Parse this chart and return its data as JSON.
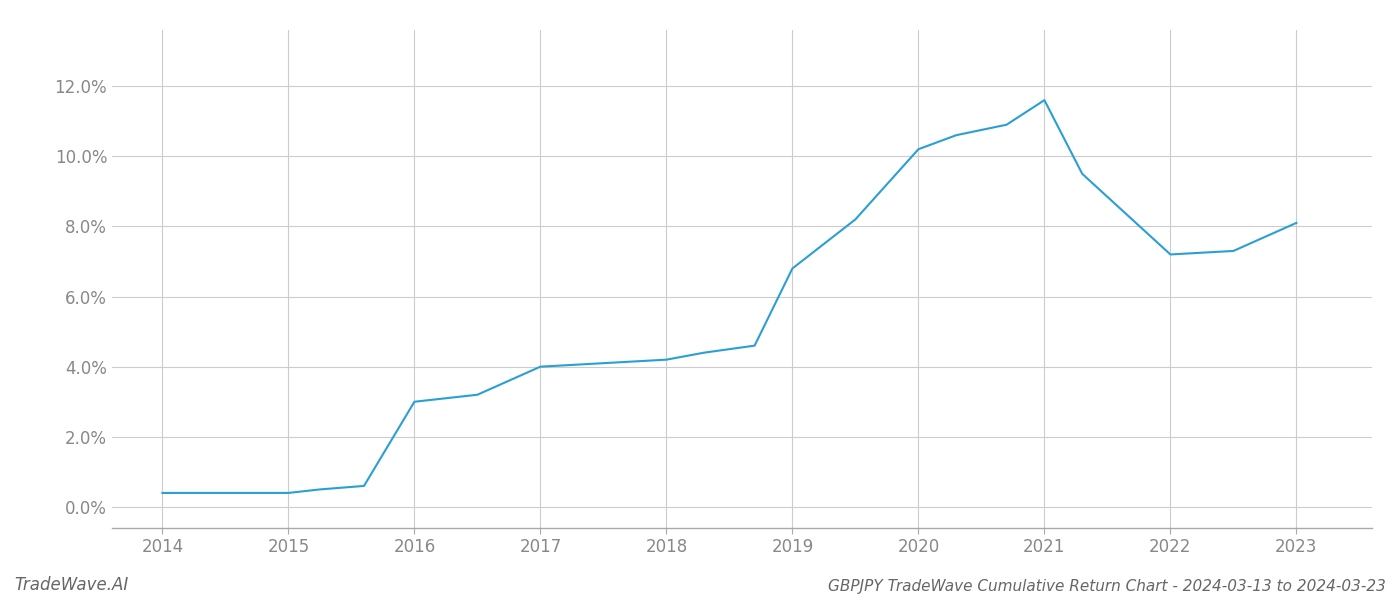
{
  "x": [
    2014,
    2014.5,
    2015,
    2015.25,
    2015.6,
    2016,
    2016.5,
    2017,
    2017.5,
    2018,
    2018.3,
    2018.7,
    2019,
    2019.5,
    2020,
    2020.3,
    2020.7,
    2021,
    2021.3,
    2022,
    2022.5,
    2023
  ],
  "y": [
    0.004,
    0.004,
    0.004,
    0.005,
    0.006,
    0.03,
    0.032,
    0.04,
    0.041,
    0.042,
    0.044,
    0.046,
    0.068,
    0.082,
    0.102,
    0.106,
    0.109,
    0.116,
    0.095,
    0.072,
    0.073,
    0.081
  ],
  "line_color": "#2b9fd4",
  "line_width": 1.5,
  "bg_color": "#ffffff",
  "grid_color": "#cccccc",
  "title": "GBPJPY TradeWave Cumulative Return Chart - 2024-03-13 to 2024-03-23",
  "watermark": "TradeWave.AI",
  "xlim": [
    2013.6,
    2023.6
  ],
  "ylim": [
    -0.006,
    0.136
  ],
  "yticks": [
    0.0,
    0.02,
    0.04,
    0.06,
    0.08,
    0.1,
    0.12
  ],
  "xticks": [
    2014,
    2015,
    2016,
    2017,
    2018,
    2019,
    2020,
    2021,
    2022,
    2023
  ],
  "title_fontsize": 11,
  "tick_fontsize": 12,
  "watermark_fontsize": 12
}
